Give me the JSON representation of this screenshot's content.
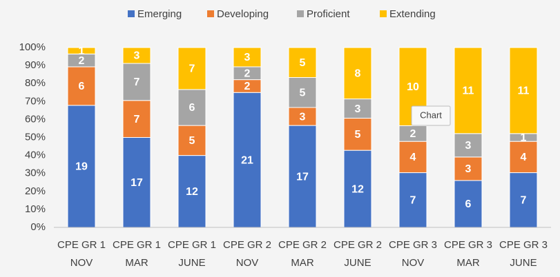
{
  "chart_data": {
    "type": "bar",
    "stacked": "percent",
    "categories": [
      [
        "CPE GR 1",
        "NOV"
      ],
      [
        "CPE GR 1",
        "MAR"
      ],
      [
        "CPE GR 1",
        "JUNE"
      ],
      [
        "CPE GR 2",
        "NOV"
      ],
      [
        "CPE GR 2",
        "MAR"
      ],
      [
        "CPE GR 2",
        "JUNE"
      ],
      [
        "CPE GR 3",
        "NOV"
      ],
      [
        "CPE GR 3",
        "MAR"
      ],
      [
        "CPE GR 3",
        "JUNE"
      ]
    ],
    "series": [
      {
        "name": "Emerging",
        "color": "#4472c4",
        "values": [
          19,
          17,
          12,
          21,
          17,
          12,
          7,
          6,
          7
        ]
      },
      {
        "name": "Developing",
        "color": "#ed7d31",
        "values": [
          6,
          7,
          5,
          2,
          3,
          5,
          4,
          3,
          4
        ]
      },
      {
        "name": "Proficient",
        "color": "#a5a5a5",
        "values": [
          2,
          7,
          6,
          2,
          5,
          3,
          2,
          3,
          1
        ]
      },
      {
        "name": "Extending",
        "color": "#ffc000",
        "values": [
          1,
          3,
          7,
          3,
          5,
          8,
          10,
          11,
          11
        ]
      }
    ],
    "ylim": [
      0,
      100
    ],
    "yticks": [
      {
        "value": 0,
        "label": "0%"
      },
      {
        "value": 10,
        "label": "10%"
      },
      {
        "value": 20,
        "label": "20%"
      },
      {
        "value": 30,
        "label": "30%"
      },
      {
        "value": 40,
        "label": "40%"
      },
      {
        "value": 50,
        "label": "50%"
      },
      {
        "value": 60,
        "label": "60%"
      },
      {
        "value": 70,
        "label": "70%"
      },
      {
        "value": 80,
        "label": "80%"
      },
      {
        "value": 90,
        "label": "90%"
      },
      {
        "value": 100,
        "label": "100%"
      }
    ],
    "grid": false,
    "legend": "top",
    "tooltip": "Chart"
  }
}
